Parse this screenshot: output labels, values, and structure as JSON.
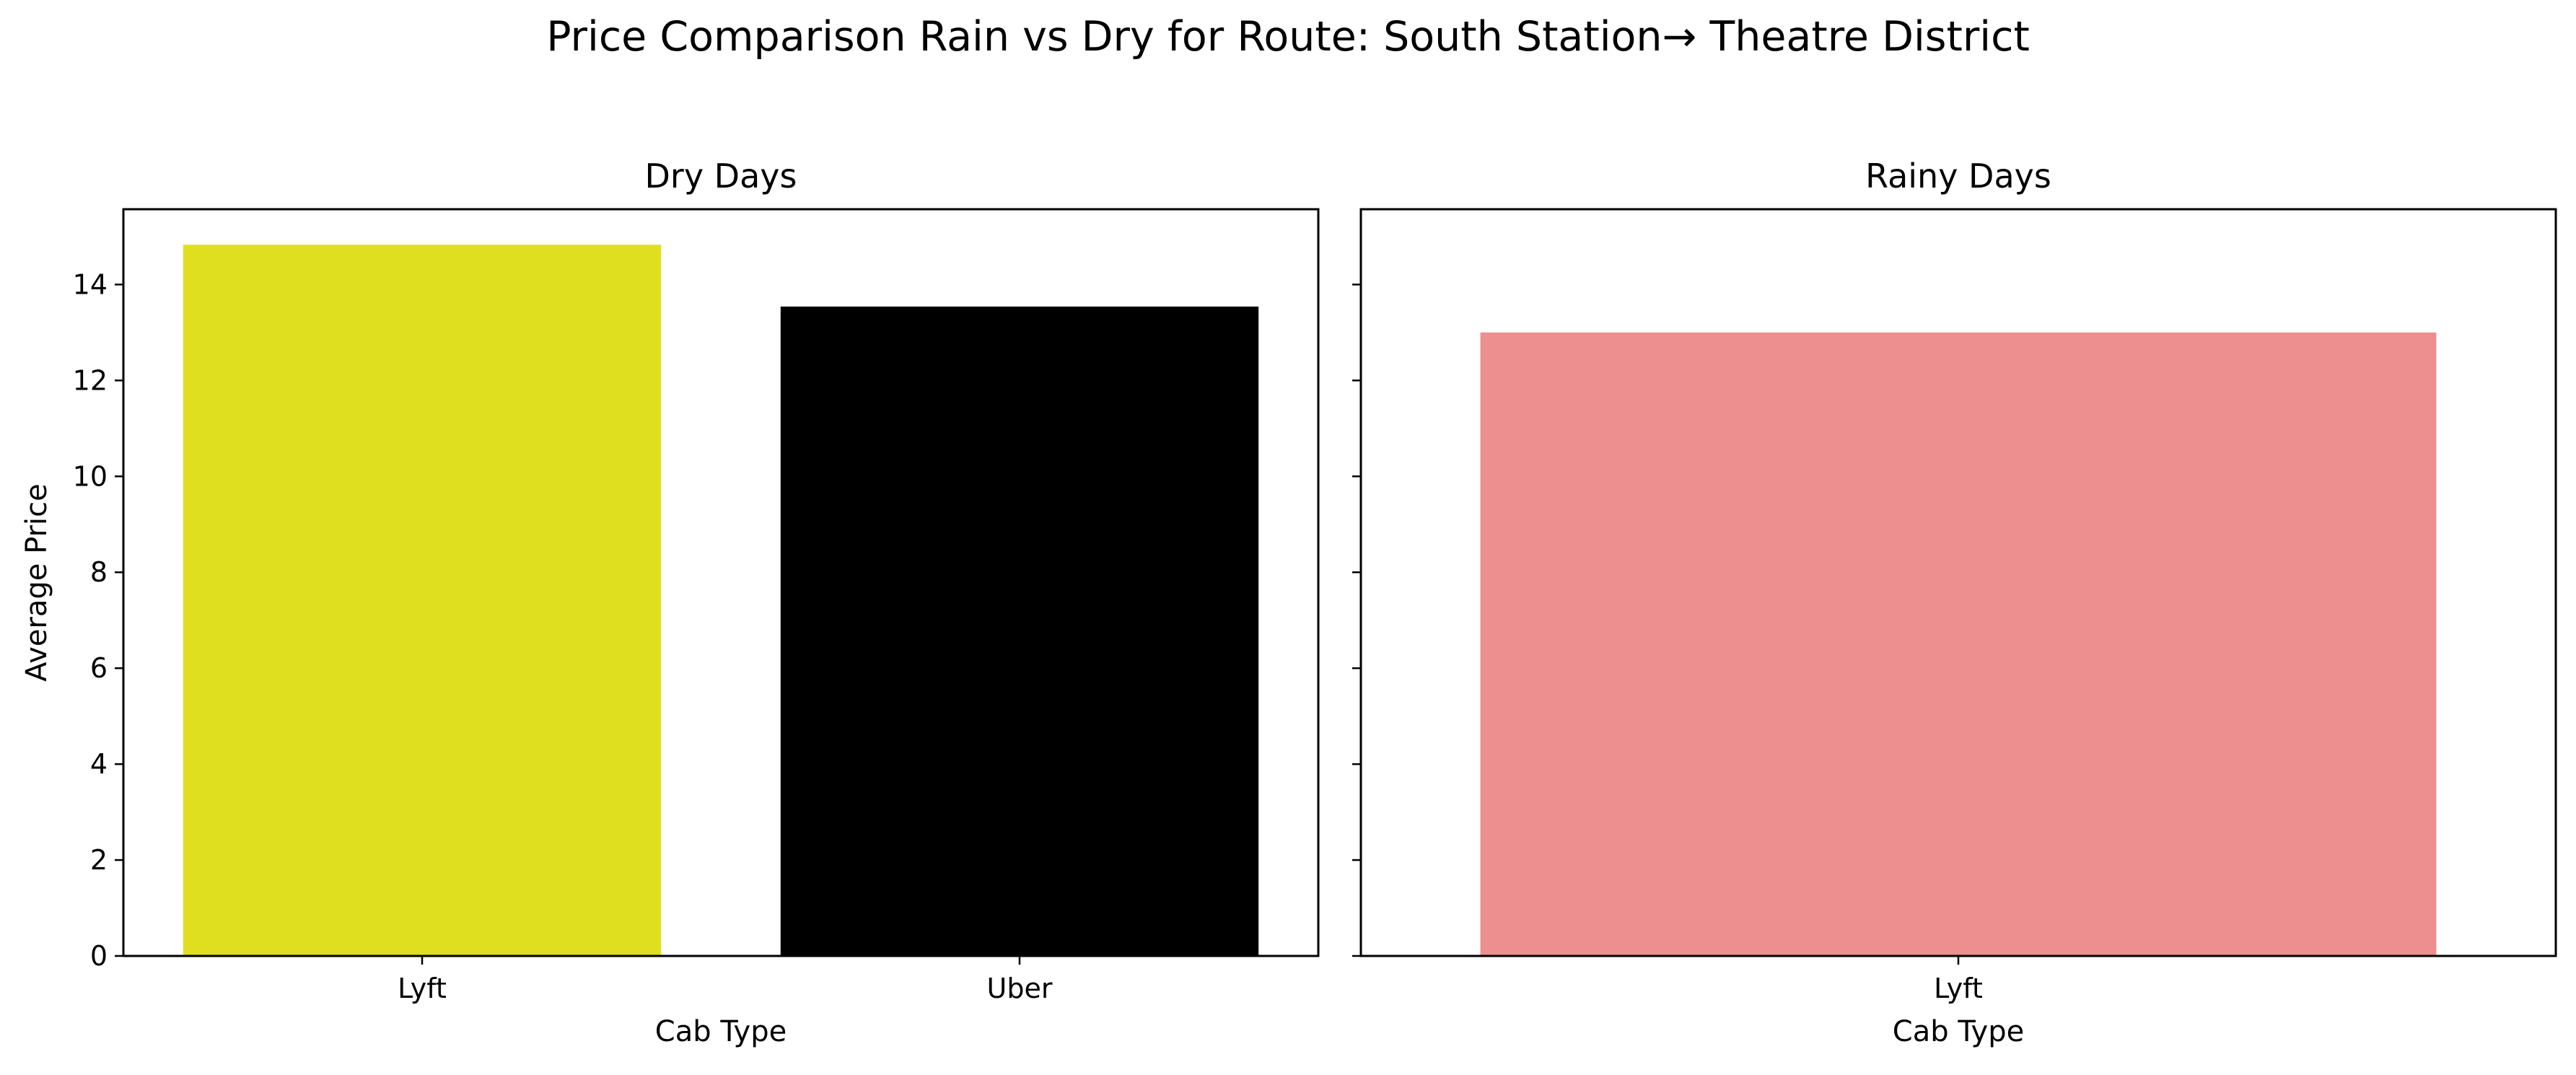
{
  "figure": {
    "suptitle": "Price Comparison Rain vs Dry for Route: South Station→ Theatre District"
  },
  "chart_data": [
    {
      "type": "bar",
      "title": "Dry Days",
      "xlabel": "Cab Type",
      "ylabel": "Average Price",
      "categories": [
        "Lyft",
        "Uber"
      ],
      "values": [
        14.83,
        13.54
      ],
      "colors": [
        "#dfdf20",
        "#000000"
      ],
      "ylim": [
        0,
        15.57
      ],
      "yticks": [
        0,
        2,
        4,
        6,
        8,
        10,
        12,
        14
      ],
      "grid": false,
      "legend": "none"
    },
    {
      "type": "bar",
      "title": "Rainy Days",
      "xlabel": "Cab Type",
      "ylabel": "",
      "categories": [
        "Lyft"
      ],
      "values": [
        13.0
      ],
      "colors": [
        "#ec8f8e"
      ],
      "ylim": [
        0,
        15.57
      ],
      "yticks": [
        0,
        2,
        4,
        6,
        8,
        10,
        12,
        14
      ],
      "shared_y": true,
      "grid": false,
      "legend": "none"
    }
  ]
}
